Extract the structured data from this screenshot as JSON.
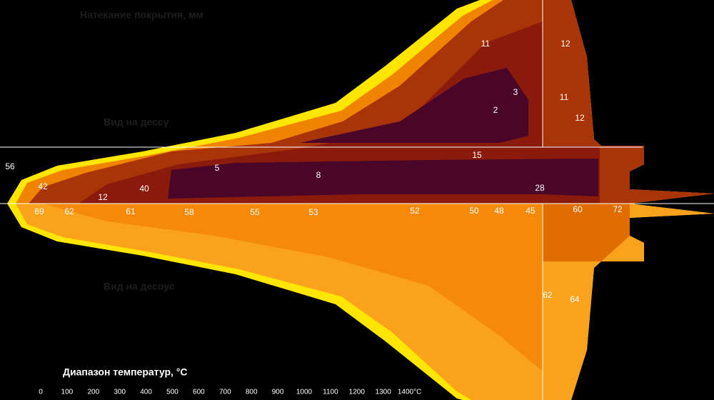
{
  "header": {
    "title": "Натекание покрытия, мм"
  },
  "views": {
    "top": "Вид на дессу",
    "bottom": "Вид на десоус"
  },
  "labels": [
    "11",
    "12",
    "11",
    "12",
    "3",
    "2",
    "15",
    "5",
    "8",
    "28",
    "12",
    "40",
    "42",
    "56",
    "69",
    "62",
    "61",
    "58",
    "55",
    "53",
    "52",
    "50",
    "48",
    "45",
    "60",
    "72",
    "62",
    "64"
  ],
  "legend": {
    "title": "Диапазон температур, °C",
    "ticks": [
      "0",
      "100",
      "200",
      "300",
      "400",
      "500",
      "600",
      "700",
      "800",
      "900",
      "1000",
      "1100",
      "1200",
      "1300",
      "1400°C"
    ]
  }
}
